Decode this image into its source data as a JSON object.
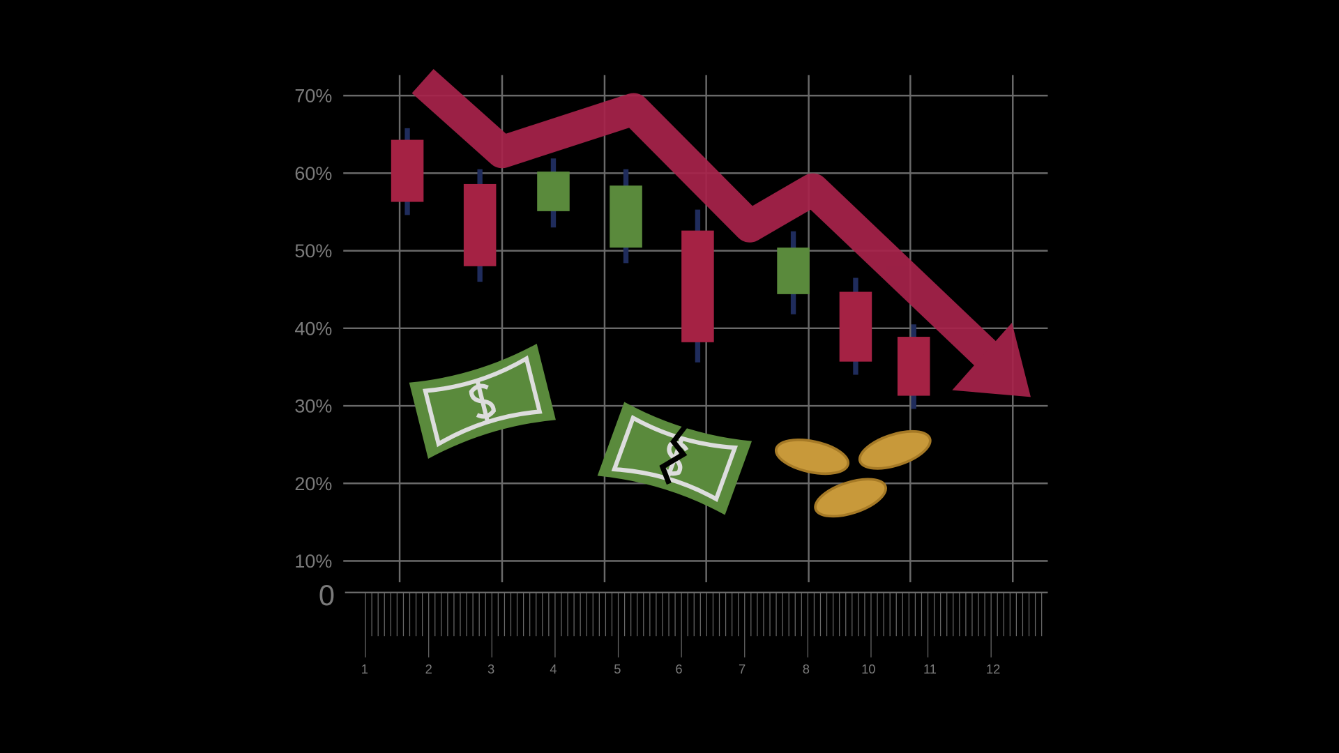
{
  "chart_data": {
    "type": "candlestick",
    "open": [
      64.3,
      58.6,
      55.1,
      50.4,
      52.6,
      44.4,
      44.7,
      38.9
    ],
    "high": [
      65.8,
      60.5,
      61.9,
      60.5,
      55.3,
      52.5,
      46.5,
      40.5
    ],
    "low": [
      54.6,
      46.0,
      53.0,
      48.4,
      35.6,
      41.8,
      34.0,
      29.6
    ],
    "close": [
      56.3,
      48.0,
      60.2,
      58.4,
      38.2,
      50.4,
      35.7,
      31.3
    ],
    "up_color": "#5a8a3c",
    "down_color": "#a52244",
    "wick_color": "#1f2c5c",
    "ylim": [
      10,
      70
    ],
    "yticks": [
      {
        "value": 10,
        "label": "10%"
      },
      {
        "value": 20,
        "label": "20%"
      },
      {
        "value": 30,
        "label": "30%"
      },
      {
        "value": 40,
        "label": "40%"
      },
      {
        "value": 50,
        "label": "50%"
      },
      {
        "value": 60,
        "label": "60%"
      },
      {
        "value": 70,
        "label": "70%"
      }
    ],
    "grid": true,
    "origin_label": "0",
    "ruler_labels": [
      "1",
      "2",
      "3",
      "4",
      "5",
      "6",
      "7",
      "8",
      "10",
      "11",
      "12"
    ]
  }
}
